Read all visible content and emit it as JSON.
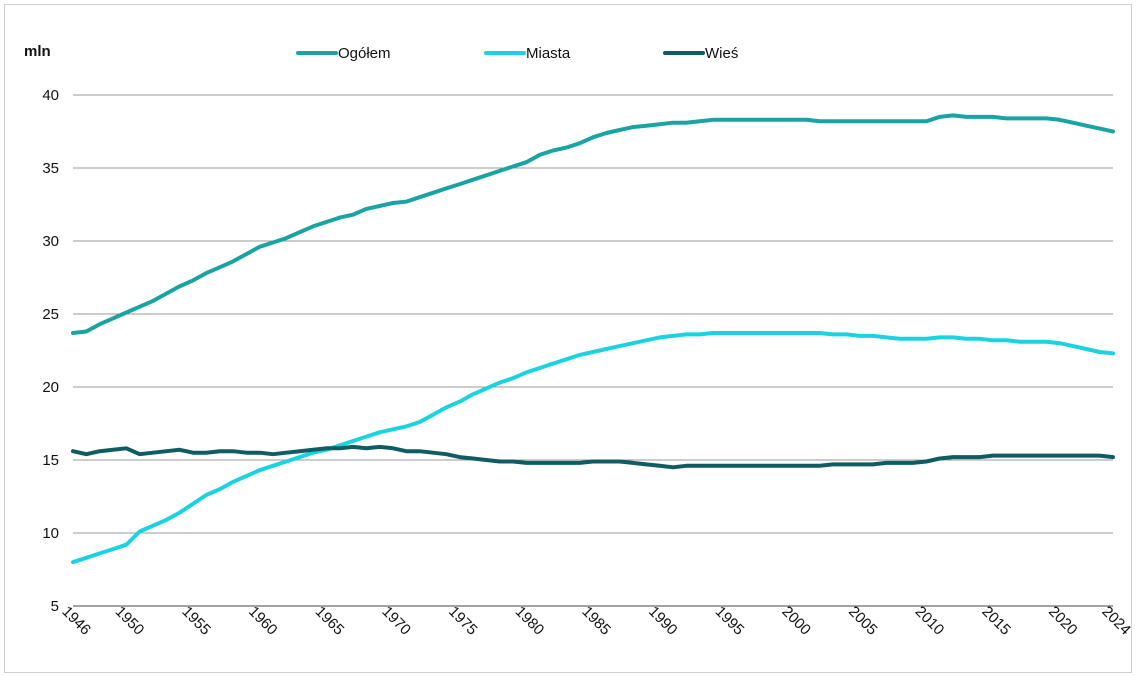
{
  "chart_data": {
    "type": "line",
    "title": "",
    "xlabel": "",
    "ylabel": "mln",
    "ylim": [
      5,
      40
    ],
    "y_ticks": [
      5,
      10,
      15,
      20,
      25,
      30,
      35,
      40
    ],
    "x_tick_labels": [
      "1946",
      "1950",
      "1955",
      "1960",
      "1965",
      "1970",
      "1975",
      "1980",
      "1985",
      "1990",
      "1995",
      "2000",
      "2005",
      "2010",
      "2015",
      "2020",
      "2024"
    ],
    "grid": "horizontal",
    "legend_position": "top",
    "x": [
      1946,
      1947,
      1948,
      1949,
      1950,
      1951,
      1952,
      1953,
      1954,
      1955,
      1956,
      1957,
      1958,
      1959,
      1960,
      1961,
      1962,
      1963,
      1964,
      1965,
      1966,
      1967,
      1968,
      1969,
      1970,
      1971,
      1972,
      1973,
      1974,
      1975,
      1976,
      1977,
      1978,
      1979,
      1980,
      1981,
      1982,
      1983,
      1984,
      1985,
      1986,
      1987,
      1988,
      1989,
      1990,
      1991,
      1992,
      1993,
      1994,
      1995,
      1996,
      1997,
      1998,
      1999,
      2000,
      2001,
      2002,
      2003,
      2004,
      2005,
      2006,
      2007,
      2008,
      2009,
      2010,
      2011,
      2012,
      2013,
      2014,
      2015,
      2016,
      2017,
      2018,
      2019,
      2020,
      2021,
      2022,
      2023,
      2024
    ],
    "series": [
      {
        "name": "Ogółem",
        "color": "#19a3a3",
        "values": [
          23.7,
          23.8,
          24.3,
          24.7,
          25.1,
          25.5,
          25.9,
          26.4,
          26.9,
          27.3,
          27.8,
          28.2,
          28.6,
          29.1,
          29.6,
          29.9,
          30.2,
          30.6,
          31.0,
          31.3,
          31.6,
          31.8,
          32.2,
          32.4,
          32.6,
          32.7,
          33.0,
          33.3,
          33.6,
          33.9,
          34.2,
          34.5,
          34.8,
          35.1,
          35.4,
          35.9,
          36.2,
          36.4,
          36.7,
          37.1,
          37.4,
          37.6,
          37.8,
          37.9,
          38.0,
          38.1,
          38.1,
          38.2,
          38.3,
          38.3,
          38.3,
          38.3,
          38.3,
          38.3,
          38.3,
          38.3,
          38.2,
          38.2,
          38.2,
          38.2,
          38.2,
          38.2,
          38.2,
          38.2,
          38.2,
          38.5,
          38.6,
          38.5,
          38.5,
          38.5,
          38.4,
          38.4,
          38.4,
          38.4,
          38.3,
          38.1,
          37.9,
          37.7,
          37.5
        ]
      },
      {
        "name": "Miasta",
        "color": "#1bd3e0",
        "values": [
          8.0,
          8.3,
          8.6,
          8.9,
          9.2,
          10.1,
          10.5,
          10.9,
          11.4,
          12.0,
          12.6,
          13.0,
          13.5,
          13.9,
          14.3,
          14.6,
          14.9,
          15.2,
          15.5,
          15.7,
          16.0,
          16.3,
          16.6,
          16.9,
          17.1,
          17.3,
          17.6,
          18.1,
          18.6,
          19.0,
          19.5,
          19.9,
          20.3,
          20.6,
          21.0,
          21.3,
          21.6,
          21.9,
          22.2,
          22.4,
          22.6,
          22.8,
          23.0,
          23.2,
          23.4,
          23.5,
          23.6,
          23.6,
          23.7,
          23.7,
          23.7,
          23.7,
          23.7,
          23.7,
          23.7,
          23.7,
          23.7,
          23.6,
          23.6,
          23.5,
          23.5,
          23.4,
          23.3,
          23.3,
          23.3,
          23.4,
          23.4,
          23.3,
          23.3,
          23.2,
          23.2,
          23.1,
          23.1,
          23.1,
          23.0,
          22.8,
          22.6,
          22.4,
          22.3
        ]
      },
      {
        "name": "Wieś",
        "color": "#0f5c63",
        "values": [
          15.6,
          15.4,
          15.6,
          15.7,
          15.8,
          15.4,
          15.5,
          15.6,
          15.7,
          15.5,
          15.5,
          15.6,
          15.6,
          15.5,
          15.5,
          15.4,
          15.5,
          15.6,
          15.7,
          15.8,
          15.8,
          15.9,
          15.8,
          15.9,
          15.8,
          15.6,
          15.6,
          15.5,
          15.4,
          15.2,
          15.1,
          15.0,
          14.9,
          14.9,
          14.8,
          14.8,
          14.8,
          14.8,
          14.8,
          14.9,
          14.9,
          14.9,
          14.8,
          14.7,
          14.6,
          14.5,
          14.6,
          14.6,
          14.6,
          14.6,
          14.6,
          14.6,
          14.6,
          14.6,
          14.6,
          14.6,
          14.6,
          14.7,
          14.7,
          14.7,
          14.7,
          14.8,
          14.8,
          14.8,
          14.9,
          15.1,
          15.2,
          15.2,
          15.2,
          15.3,
          15.3,
          15.3,
          15.3,
          15.3,
          15.3,
          15.3,
          15.3,
          15.3,
          15.2
        ]
      }
    ]
  }
}
